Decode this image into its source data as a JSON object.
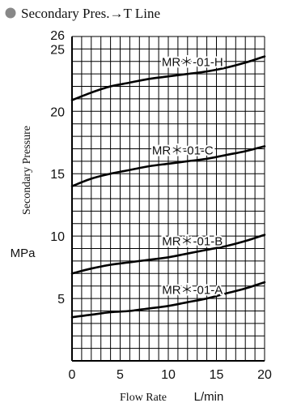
{
  "chart_data": {
    "type": "line",
    "title": "Secondary Pres.→T Line",
    "title_marker_color": "#888888",
    "xlabel": "Flow Rate",
    "xunit": "L/min",
    "ylabel": "Secondary Pressure",
    "yunit": "MPa",
    "xlim": [
      0,
      20
    ],
    "ylim": [
      0,
      26
    ],
    "xticks": [
      "0",
      "5",
      "10",
      "15",
      "20"
    ],
    "yticks": [
      "5",
      "10",
      "15",
      "20",
      "25",
      "26"
    ],
    "grid": true,
    "series": [
      {
        "name": "MR＊-01-H",
        "x": [
          0,
          2,
          4,
          6,
          8,
          10,
          12,
          14,
          16,
          18,
          20
        ],
        "y": [
          20.9,
          21.5,
          22.0,
          22.3,
          22.6,
          22.8,
          23.0,
          23.2,
          23.5,
          23.9,
          24.4
        ]
      },
      {
        "name": "MR＊-01-C",
        "x": [
          0,
          2,
          4,
          6,
          8,
          10,
          12,
          14,
          16,
          18,
          20
        ],
        "y": [
          14.0,
          14.6,
          15.0,
          15.3,
          15.6,
          15.8,
          16.0,
          16.2,
          16.5,
          16.8,
          17.2
        ]
      },
      {
        "name": "MR＊-01-B",
        "x": [
          0,
          2,
          4,
          6,
          8,
          10,
          12,
          14,
          16,
          18,
          20
        ],
        "y": [
          7.0,
          7.4,
          7.7,
          7.9,
          8.1,
          8.3,
          8.6,
          8.9,
          9.2,
          9.6,
          10.1
        ]
      },
      {
        "name": "MR＊-01-A",
        "x": [
          0,
          2,
          4,
          6,
          8,
          10,
          12,
          14,
          16,
          18,
          20
        ],
        "y": [
          3.5,
          3.7,
          3.9,
          4.0,
          4.2,
          4.4,
          4.7,
          5.0,
          5.4,
          5.8,
          6.3
        ]
      }
    ]
  }
}
